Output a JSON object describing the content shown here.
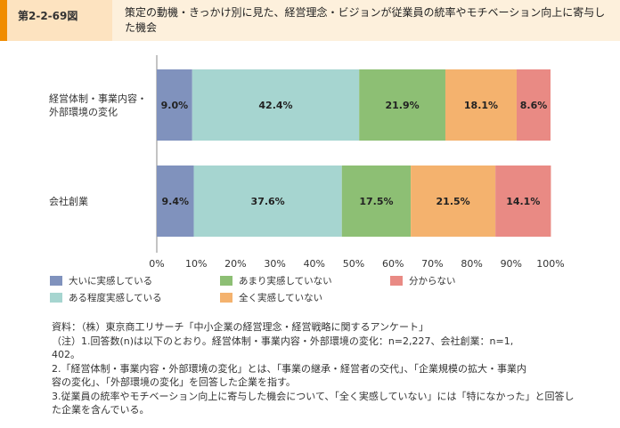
{
  "header": {
    "figure_number": "第2-2-69図",
    "title": "策定の動機・きっかけ別に見た、経営理念・ビジョンが従業員の統率やモチベーション向上に寄与した機会"
  },
  "chart_data": {
    "type": "bar",
    "orientation": "horizontal",
    "stacked": "percent",
    "categories": [
      "経営体制・事業内容・外部環境の変化",
      "会社創業"
    ],
    "category_label_lines": [
      [
        "経営体制・事業内容・",
        "外部環境の変化"
      ],
      [
        "会社創業"
      ]
    ],
    "series": [
      {
        "name": "大いに実感している",
        "color": "#8092bd",
        "values": [
          9.0,
          9.4
        ],
        "labels": [
          "9.0%",
          "9.4%"
        ]
      },
      {
        "name": "ある程度実感している",
        "color": "#a6d5d0",
        "values": [
          42.4,
          37.6
        ],
        "labels": [
          "42.4%",
          "37.6%"
        ]
      },
      {
        "name": "あまり実感していない",
        "color": "#8dbf74",
        "values": [
          21.9,
          17.5
        ],
        "labels": [
          "21.9%",
          "17.5%"
        ]
      },
      {
        "name": "全く実感していない",
        "color": "#f4b26e",
        "values": [
          18.1,
          21.5
        ],
        "labels": [
          "18.1%",
          "21.5%"
        ]
      },
      {
        "name": "分からない",
        "color": "#e98a84",
        "values": [
          8.6,
          14.1
        ],
        "labels": [
          "8.6%",
          "14.1%"
        ]
      }
    ],
    "x_ticks": [
      "0%",
      "10%",
      "20%",
      "30%",
      "40%",
      "50%",
      "60%",
      "70%",
      "80%",
      "90%",
      "100%"
    ],
    "xlim": [
      0,
      100
    ],
    "grid": false,
    "legend_placement": "bottom"
  },
  "notes": [
    "資料：（株）東京商工リサーチ「中小企業の経営理念・経営戦略に関するアンケート」",
    "（注）1.回答数(n)は以下のとおり。経営体制・事業内容・外部環境の変化：n=2,227、会社創業：n=1,",
    "402。",
    "2.「経営体制・事業内容・外部環境の変化」とは、「事業の継承・経営者の交代」、「企業規模の拡大・事業内",
    "容の変化」、「外部環境の変化」を回答した企業を指す。",
    "3.従業員の統率やモチベーション向上に寄与した機会について、「全く実感していない」には「特になかった」と回答し",
    "た企業を含んでいる。"
  ]
}
